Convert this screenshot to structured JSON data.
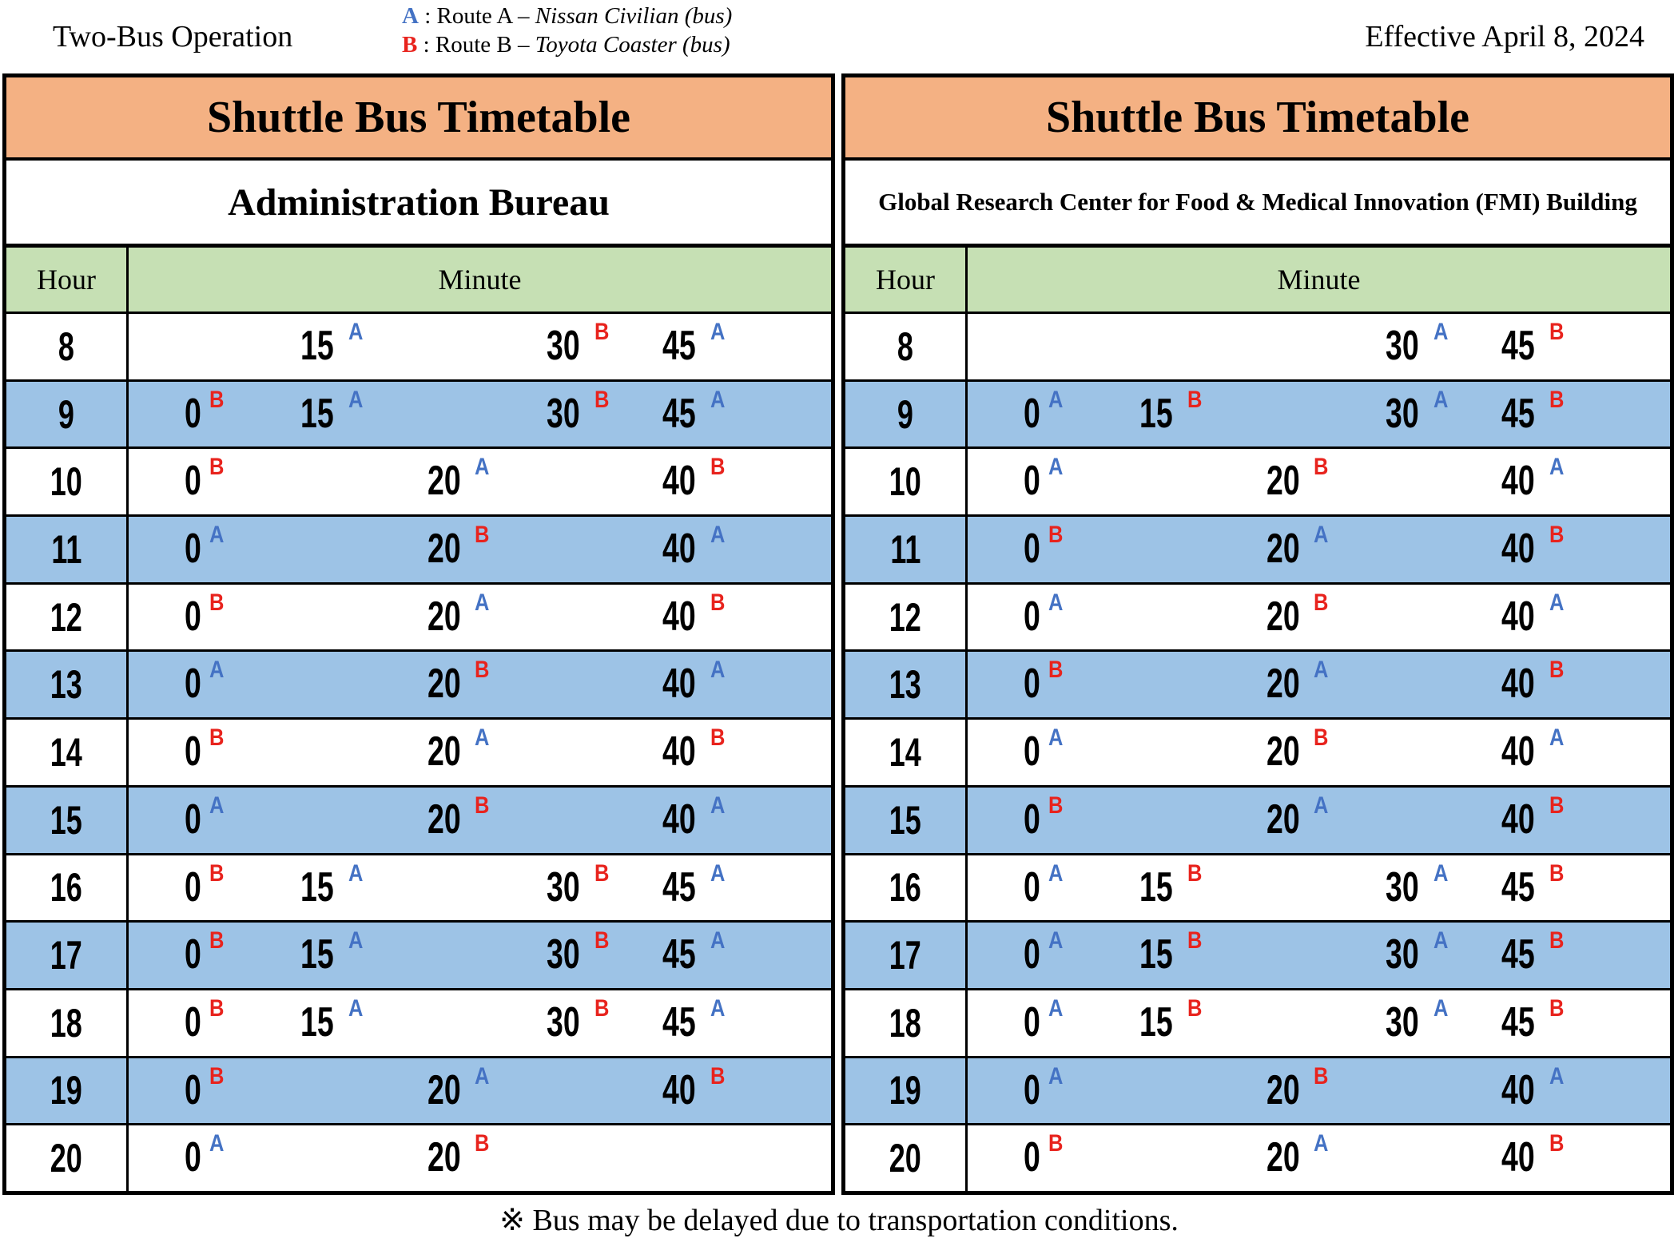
{
  "header": {
    "operation": "Two-Bus Operation",
    "effective_date": "Effective April 8, 2024",
    "legend": [
      {
        "letter": "A",
        "rest": " : Route A – ",
        "vehicle": "Nissan Civilian (bus)"
      },
      {
        "letter": "B",
        "rest": " : Route B – ",
        "vehicle": "Toyota Coaster (bus)"
      }
    ]
  },
  "colors": {
    "title_bg": "#F4B183",
    "head_bg": "#C6E0B4",
    "stripe_bg": "#9DC3E6",
    "routes": {
      "A": "#4472C4",
      "B": "#E8231D"
    }
  },
  "tables": [
    {
      "title": "Shuttle Bus Timetable",
      "subtitle": "Administration Bureau",
      "subtitle_size": "big",
      "hour_header": "Hour",
      "minute_header": "Minute",
      "rows": [
        {
          "hour": "8",
          "highlight": false,
          "times": [
            {
              "m": "15",
              "route": "A"
            },
            {
              "m": "30",
              "route": "B"
            },
            {
              "m": "45",
              "route": "A"
            }
          ]
        },
        {
          "hour": "9",
          "highlight": true,
          "times": [
            {
              "m": "0",
              "route": "B"
            },
            {
              "m": "15",
              "route": "A"
            },
            {
              "m": "30",
              "route": "B"
            },
            {
              "m": "45",
              "route": "A"
            }
          ]
        },
        {
          "hour": "10",
          "highlight": false,
          "times": [
            {
              "m": "0",
              "route": "B"
            },
            {
              "m": "20",
              "route": "A"
            },
            {
              "m": "40",
              "route": "B"
            }
          ]
        },
        {
          "hour": "11",
          "highlight": true,
          "times": [
            {
              "m": "0",
              "route": "A"
            },
            {
              "m": "20",
              "route": "B"
            },
            {
              "m": "40",
              "route": "A"
            }
          ]
        },
        {
          "hour": "12",
          "highlight": false,
          "times": [
            {
              "m": "0",
              "route": "B"
            },
            {
              "m": "20",
              "route": "A"
            },
            {
              "m": "40",
              "route": "B"
            }
          ]
        },
        {
          "hour": "13",
          "highlight": true,
          "times": [
            {
              "m": "0",
              "route": "A"
            },
            {
              "m": "20",
              "route": "B"
            },
            {
              "m": "40",
              "route": "A"
            }
          ]
        },
        {
          "hour": "14",
          "highlight": false,
          "times": [
            {
              "m": "0",
              "route": "B"
            },
            {
              "m": "20",
              "route": "A"
            },
            {
              "m": "40",
              "route": "B"
            }
          ]
        },
        {
          "hour": "15",
          "highlight": true,
          "times": [
            {
              "m": "0",
              "route": "A"
            },
            {
              "m": "20",
              "route": "B"
            },
            {
              "m": "40",
              "route": "A"
            }
          ]
        },
        {
          "hour": "16",
          "highlight": false,
          "times": [
            {
              "m": "0",
              "route": "B"
            },
            {
              "m": "15",
              "route": "A"
            },
            {
              "m": "30",
              "route": "B"
            },
            {
              "m": "45",
              "route": "A"
            }
          ]
        },
        {
          "hour": "17",
          "highlight": true,
          "times": [
            {
              "m": "0",
              "route": "B"
            },
            {
              "m": "15",
              "route": "A"
            },
            {
              "m": "30",
              "route": "B"
            },
            {
              "m": "45",
              "route": "A"
            }
          ]
        },
        {
          "hour": "18",
          "highlight": false,
          "times": [
            {
              "m": "0",
              "route": "B"
            },
            {
              "m": "15",
              "route": "A"
            },
            {
              "m": "30",
              "route": "B"
            },
            {
              "m": "45",
              "route": "A"
            }
          ]
        },
        {
          "hour": "19",
          "highlight": true,
          "times": [
            {
              "m": "0",
              "route": "B"
            },
            {
              "m": "20",
              "route": "A"
            },
            {
              "m": "40",
              "route": "B"
            }
          ]
        },
        {
          "hour": "20",
          "highlight": false,
          "times": [
            {
              "m": "0",
              "route": "A"
            },
            {
              "m": "20",
              "route": "B"
            }
          ]
        }
      ]
    },
    {
      "title": "Shuttle Bus Timetable",
      "subtitle": "Global Research Center for Food & Medical Innovation (FMI) Building",
      "subtitle_size": "small",
      "hour_header": "Hour",
      "minute_header": "Minute",
      "rows": [
        {
          "hour": "8",
          "highlight": false,
          "times": [
            {
              "m": "30",
              "route": "A"
            },
            {
              "m": "45",
              "route": "B"
            }
          ]
        },
        {
          "hour": "9",
          "highlight": true,
          "times": [
            {
              "m": "0",
              "route": "A"
            },
            {
              "m": "15",
              "route": "B"
            },
            {
              "m": "30",
              "route": "A"
            },
            {
              "m": "45",
              "route": "B"
            }
          ]
        },
        {
          "hour": "10",
          "highlight": false,
          "times": [
            {
              "m": "0",
              "route": "A"
            },
            {
              "m": "20",
              "route": "B"
            },
            {
              "m": "40",
              "route": "A"
            }
          ]
        },
        {
          "hour": "11",
          "highlight": true,
          "times": [
            {
              "m": "0",
              "route": "B"
            },
            {
              "m": "20",
              "route": "A"
            },
            {
              "m": "40",
              "route": "B"
            }
          ]
        },
        {
          "hour": "12",
          "highlight": false,
          "times": [
            {
              "m": "0",
              "route": "A"
            },
            {
              "m": "20",
              "route": "B"
            },
            {
              "m": "40",
              "route": "A"
            }
          ]
        },
        {
          "hour": "13",
          "highlight": true,
          "times": [
            {
              "m": "0",
              "route": "B"
            },
            {
              "m": "20",
              "route": "A"
            },
            {
              "m": "40",
              "route": "B"
            }
          ]
        },
        {
          "hour": "14",
          "highlight": false,
          "times": [
            {
              "m": "0",
              "route": "A"
            },
            {
              "m": "20",
              "route": "B"
            },
            {
              "m": "40",
              "route": "A"
            }
          ]
        },
        {
          "hour": "15",
          "highlight": true,
          "times": [
            {
              "m": "0",
              "route": "B"
            },
            {
              "m": "20",
              "route": "A"
            },
            {
              "m": "40",
              "route": "B"
            }
          ]
        },
        {
          "hour": "16",
          "highlight": false,
          "times": [
            {
              "m": "0",
              "route": "A"
            },
            {
              "m": "15",
              "route": "B"
            },
            {
              "m": "30",
              "route": "A"
            },
            {
              "m": "45",
              "route": "B"
            }
          ]
        },
        {
          "hour": "17",
          "highlight": true,
          "times": [
            {
              "m": "0",
              "route": "A"
            },
            {
              "m": "15",
              "route": "B"
            },
            {
              "m": "30",
              "route": "A"
            },
            {
              "m": "45",
              "route": "B"
            }
          ]
        },
        {
          "hour": "18",
          "highlight": false,
          "times": [
            {
              "m": "0",
              "route": "A"
            },
            {
              "m": "15",
              "route": "B"
            },
            {
              "m": "30",
              "route": "A"
            },
            {
              "m": "45",
              "route": "B"
            }
          ]
        },
        {
          "hour": "19",
          "highlight": true,
          "times": [
            {
              "m": "0",
              "route": "A"
            },
            {
              "m": "20",
              "route": "B"
            },
            {
              "m": "40",
              "route": "A"
            }
          ]
        },
        {
          "hour": "20",
          "highlight": false,
          "times": [
            {
              "m": "0",
              "route": "B"
            },
            {
              "m": "20",
              "route": "A"
            },
            {
              "m": "40",
              "route": "B"
            }
          ]
        }
      ]
    }
  ],
  "footer": {
    "note": "※ Bus may be delayed due to transportation conditions."
  }
}
